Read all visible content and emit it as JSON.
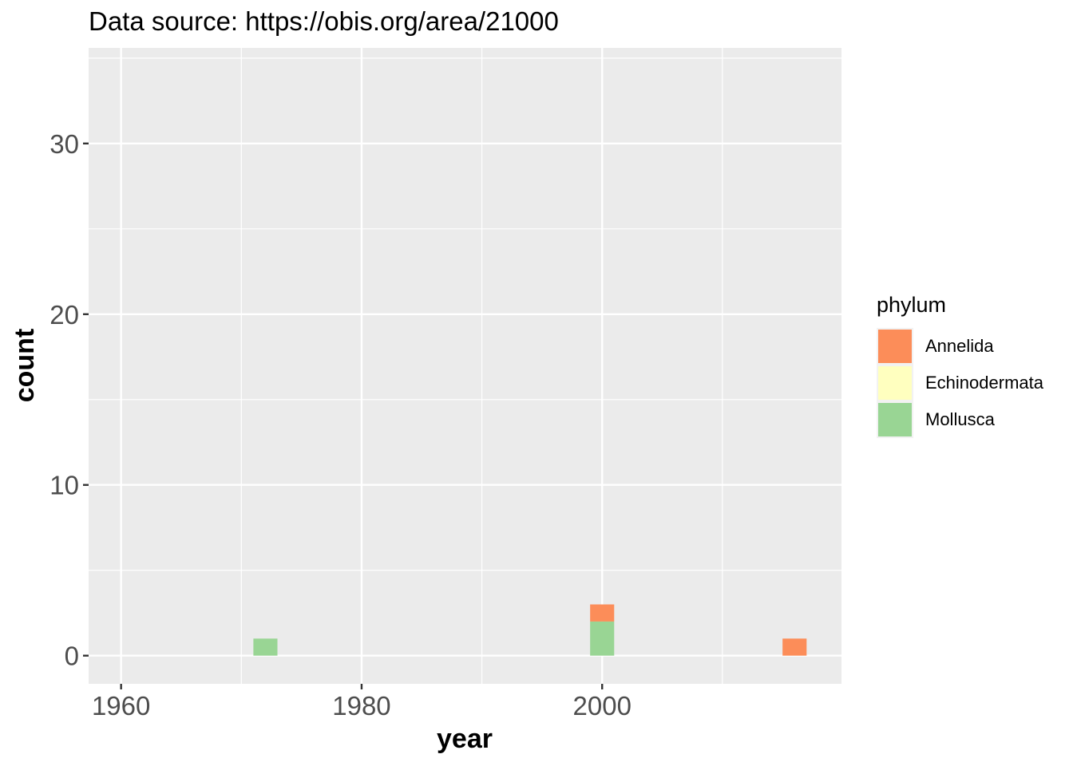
{
  "chart_data": {
    "type": "bar",
    "title": "Data source: https://obis.org/area/21000",
    "xlabel": "year",
    "ylabel": "count",
    "x_ticks": [
      1960,
      1980,
      2000
    ],
    "y_ticks": [
      0,
      10,
      20,
      30
    ],
    "xlim": [
      1957.3,
      2019.9
    ],
    "ylim": [
      -1.65,
      35.6
    ],
    "bin_width": 2,
    "grid": true,
    "stacked": true,
    "legend": {
      "title": "phylum",
      "position": "right"
    },
    "series": [
      {
        "name": "Annelida",
        "color": "#fc8d59",
        "bars": [
          {
            "x": 2000,
            "value": 1
          },
          {
            "x": 2016,
            "value": 1
          }
        ]
      },
      {
        "name": "Echinodermata",
        "color": "#ffffbf",
        "bars": []
      },
      {
        "name": "Mollusca",
        "color": "#99d594",
        "bars": [
          {
            "x": 1972,
            "value": 1
          },
          {
            "x": 2000,
            "value": 2
          }
        ]
      }
    ]
  }
}
